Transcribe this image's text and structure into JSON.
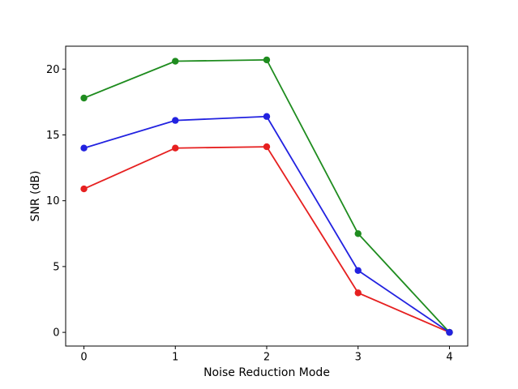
{
  "figure": {
    "background": "#ffffff",
    "axis_color": "#000000"
  },
  "chart_data": {
    "type": "line",
    "xlabel": "Noise Reduction Mode",
    "ylabel": "SNR (dB)",
    "x": [
      0,
      1,
      2,
      3,
      4
    ],
    "xtick_labels": [
      "0",
      "1",
      "2",
      "3",
      "4"
    ],
    "yticks": [
      0,
      5,
      10,
      15,
      20
    ],
    "xlim": [
      -0.2,
      4.2
    ],
    "ylim": [
      -1.04,
      21.74
    ],
    "grid": false,
    "legend": null,
    "marker": "circle",
    "series": [
      {
        "name": "red-series",
        "color": "#e62020",
        "values": [
          10.9,
          14.0,
          14.1,
          3.0,
          0.0
        ]
      },
      {
        "name": "green-series",
        "color": "#1f8c1f",
        "values": [
          17.8,
          20.6,
          20.7,
          7.5,
          0.0
        ]
      },
      {
        "name": "blue-series",
        "color": "#2222e0",
        "values": [
          14.0,
          16.1,
          16.4,
          4.7,
          0.0
        ]
      }
    ]
  }
}
